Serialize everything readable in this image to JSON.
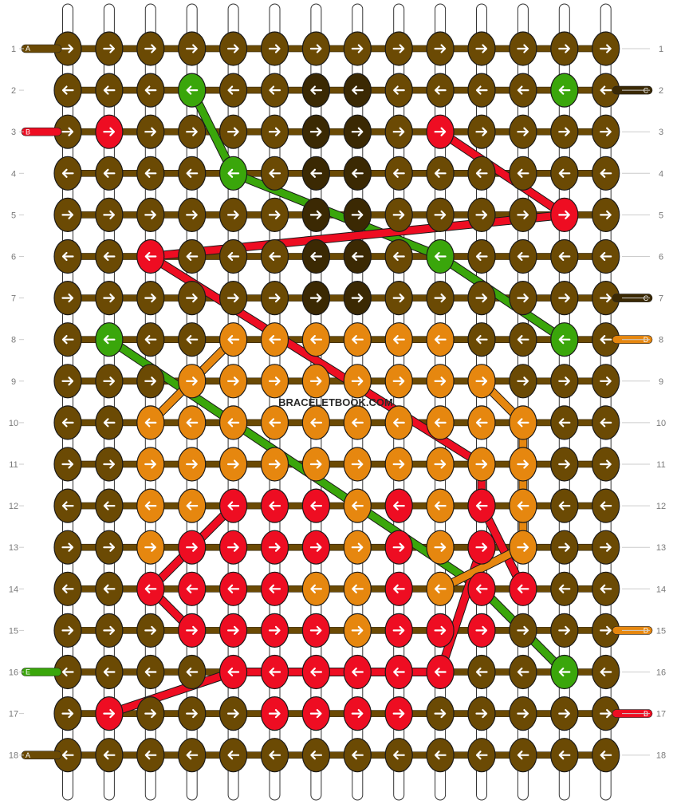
{
  "watermark": "BRACELETBOOK.COM",
  "rows": [
    "1",
    "2",
    "3",
    "4",
    "5",
    "6",
    "7",
    "8",
    "9",
    "10",
    "11",
    "12",
    "13",
    "14",
    "15",
    "16",
    "17",
    "18"
  ],
  "colors": {
    "N": "#6b4a04",
    "D": "#3b2903",
    "G": "#3aa60b",
    "R": "#ee0d22",
    "O": "#e6870f",
    "string_white": "#ffffff",
    "string_outline": "#333333"
  },
  "grid": [
    "NNNNNNNNNNNNNN",
    "NNNGNNDDNNNNGN",
    "NRNNNNDDNRNNNN",
    "NNNNGNDDNNNNNN",
    "NNNNNNDDNNNNRN",
    "NNRNNNDDNGNNNN",
    "NNNNNNDDNNNNNN",
    "NGNNOOOOOONNGN",
    "NNNOOOOOOOONNN",
    "NNOOOOOOOOOONN",
    "NNOOOOOOOOOONN",
    "NNOORRRORORONN",
    "NNORRRRORORONN",
    "NNRRRROORORRNN",
    "NNNRRRRORRRNNN",
    "NNNNRRRRRRNNGN",
    "NRNNNRRRRNNNNN",
    "NNNNNNNNNNNNNN"
  ],
  "directions": [
    "RRRRRRRRRRRRRR",
    "LLLLLLLLLLLLLL",
    "RRRRRRRRRRRRRR",
    "LLLLLLLLLLLLLL",
    "RRRRRRRRRRRRRR",
    "LLLLLLLLLLLLLL",
    "RRRRRRRRRRRRRR",
    "LLLLLLLLLLLLLL",
    "RRRRRRRRRRRRRR",
    "LLLLLLLLLLLLLL",
    "RRRRRRRRRRRRRR",
    "LLLLLLLLLLLLLL",
    "RRRRRRRRRRRRRR",
    "LLLLLLLLLLLLLL",
    "RRRRRRRRRRRRRR",
    "LLLLLLLLLLLLLL",
    "RRRRRRRRRRRRRR",
    "LLLLLLLLLLLLLL"
  ],
  "left_ends": [
    {
      "row": 1,
      "label": "A",
      "color": "N"
    },
    {
      "row": 3,
      "label": "B",
      "color": "R"
    },
    {
      "row": 16,
      "label": "E",
      "color": "G"
    },
    {
      "row": 18,
      "label": "A",
      "color": "N"
    }
  ],
  "right_ends": [
    {
      "row": 2,
      "label": "C",
      "color": "D"
    },
    {
      "row": 7,
      "label": "C",
      "color": "D"
    },
    {
      "row": 8,
      "label": "D",
      "color": "O"
    },
    {
      "row": 15,
      "label": "D",
      "color": "O"
    },
    {
      "row": 17,
      "label": "B",
      "color": "R"
    }
  ],
  "diagonal_strands": [
    {
      "color": "G",
      "points": [
        [
          4,
          2
        ],
        [
          5,
          4
        ],
        [
          10,
          6
        ],
        [
          13,
          8
        ]
      ]
    },
    {
      "color": "G",
      "points": [
        [
          2,
          8
        ],
        [
          11,
          14
        ],
        [
          13,
          16
        ]
      ]
    },
    {
      "color": "R",
      "points": [
        [
          10,
          3
        ],
        [
          13,
          5
        ],
        [
          3,
          6
        ],
        [
          11,
          11
        ],
        [
          11,
          12
        ],
        [
          12,
          14
        ]
      ]
    },
    {
      "color": "R",
      "points": [
        [
          5,
          12
        ],
        [
          4,
          13
        ],
        [
          3,
          14
        ],
        [
          4,
          15
        ]
      ]
    },
    {
      "color": "R",
      "points": [
        [
          11,
          13
        ],
        [
          10,
          16
        ],
        [
          5,
          16
        ],
        [
          2,
          17
        ]
      ]
    },
    {
      "color": "O",
      "points": [
        [
          5,
          8
        ],
        [
          4,
          9
        ],
        [
          3,
          10
        ]
      ]
    },
    {
      "color": "O",
      "points": [
        [
          11,
          9
        ],
        [
          12,
          10
        ],
        [
          12,
          13
        ],
        [
          10,
          14
        ]
      ]
    }
  ]
}
